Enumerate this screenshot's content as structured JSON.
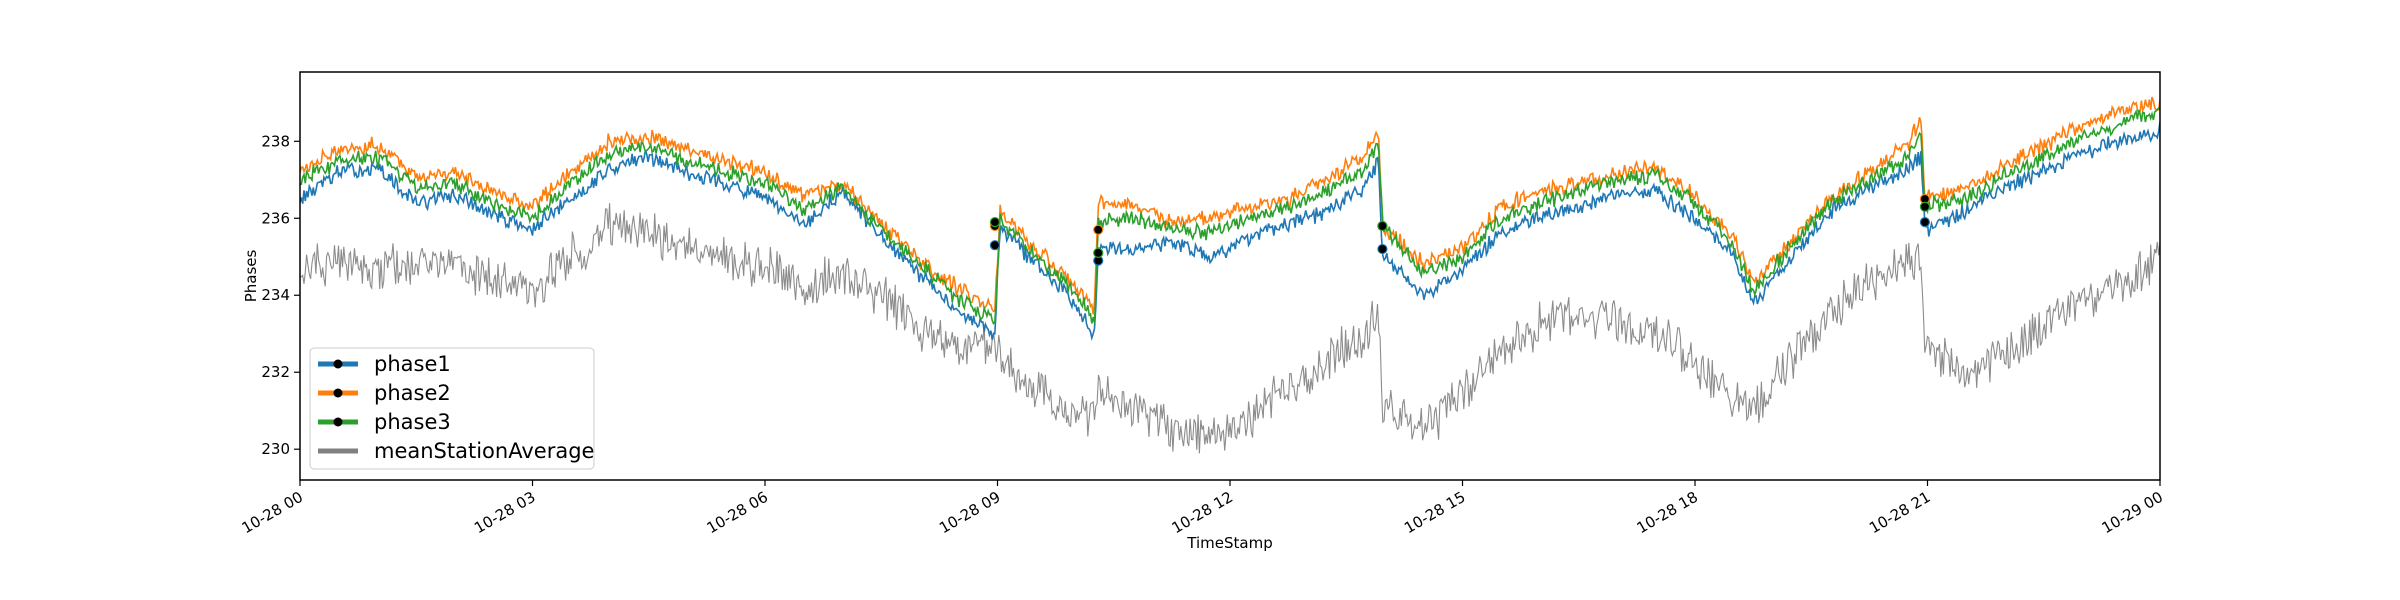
{
  "chart_data": {
    "type": "line",
    "title": "",
    "xlabel": "TimeStamp",
    "ylabel": "Phases",
    "xlim": [
      "2020-10-28T00:00",
      "2020-10-29T00:00"
    ],
    "ylim": [
      229.2,
      239.8
    ],
    "grid": false,
    "legend_position": "lower-left",
    "x_ticks": [
      {
        "t": "2020-10-28T00:00",
        "label": "10-28 00"
      },
      {
        "t": "2020-10-28T03:00",
        "label": "10-28 03"
      },
      {
        "t": "2020-10-28T06:00",
        "label": "10-28 06"
      },
      {
        "t": "2020-10-28T09:00",
        "label": "10-28 09"
      },
      {
        "t": "2020-10-28T12:00",
        "label": "10-28 12"
      },
      {
        "t": "2020-10-28T15:00",
        "label": "10-28 15"
      },
      {
        "t": "2020-10-28T18:00",
        "label": "10-28 18"
      },
      {
        "t": "2020-10-28T21:00",
        "label": "10-28 21"
      },
      {
        "t": "2020-10-29T00:00",
        "label": "10-29 00"
      }
    ],
    "y_ticks": [
      230,
      232,
      234,
      236,
      238
    ],
    "x": [
      "2020-10-28T00:00",
      "2020-10-28T00:30",
      "2020-10-28T01:00",
      "2020-10-28T01:30",
      "2020-10-28T02:00",
      "2020-10-28T02:30",
      "2020-10-28T03:00",
      "2020-10-28T03:30",
      "2020-10-28T04:00",
      "2020-10-28T04:30",
      "2020-10-28T05:00",
      "2020-10-28T05:30",
      "2020-10-28T06:00",
      "2020-10-28T06:30",
      "2020-10-28T07:00",
      "2020-10-28T07:30",
      "2020-10-28T08:00",
      "2020-10-28T08:30",
      "2020-10-28T08:58",
      "2020-10-28T09:02",
      "2020-10-28T09:30",
      "2020-10-28T10:00",
      "2020-10-28T10:15",
      "2020-10-28T10:18",
      "2020-10-28T10:45",
      "2020-10-28T11:15",
      "2020-10-28T11:45",
      "2020-10-28T12:15",
      "2020-10-28T12:45",
      "2020-10-28T13:15",
      "2020-10-28T13:45",
      "2020-10-28T13:55",
      "2020-10-28T13:58",
      "2020-10-28T14:30",
      "2020-10-28T15:00",
      "2020-10-28T15:30",
      "2020-10-28T16:00",
      "2020-10-28T16:30",
      "2020-10-28T17:00",
      "2020-10-28T17:30",
      "2020-10-28T18:00",
      "2020-10-28T18:30",
      "2020-10-28T18:45",
      "2020-10-28T19:15",
      "2020-10-28T19:45",
      "2020-10-28T20:15",
      "2020-10-28T20:45",
      "2020-10-28T20:55",
      "2020-10-28T20:58",
      "2020-10-28T21:30",
      "2020-10-28T22:00",
      "2020-10-28T22:30",
      "2020-10-28T23:00",
      "2020-10-28T23:30",
      "2020-10-29T00:00"
    ],
    "series": [
      {
        "name": "phase1",
        "color": "#1f77b4",
        "marker_x": [
          "2020-10-28T08:58",
          "2020-10-28T10:18",
          "2020-10-28T13:58",
          "2020-10-28T20:58"
        ],
        "marker_y": [
          235.3,
          234.9,
          235.2,
          235.9
        ],
        "values": [
          236.5,
          237.2,
          237.3,
          236.4,
          236.6,
          236.1,
          235.7,
          236.5,
          237.3,
          237.6,
          237.2,
          236.9,
          236.5,
          235.8,
          236.7,
          235.5,
          234.5,
          233.6,
          233.0,
          235.8,
          234.8,
          233.8,
          233.0,
          235.3,
          235.2,
          235.4,
          235.0,
          235.5,
          235.8,
          236.2,
          236.8,
          237.5,
          235.1,
          234.0,
          234.7,
          235.6,
          236.0,
          236.3,
          236.6,
          236.7,
          236.0,
          235.0,
          233.8,
          235.0,
          236.2,
          236.8,
          237.3,
          237.6,
          235.7,
          236.2,
          236.8,
          237.2,
          237.7,
          238.0,
          238.3
        ]
      },
      {
        "name": "phase2",
        "color": "#ff7f0e",
        "marker_x": [
          "2020-10-28T08:58",
          "2020-10-28T10:18",
          "2020-10-28T13:58",
          "2020-10-28T20:58"
        ],
        "marker_y": [
          235.8,
          235.7,
          235.8,
          236.5
        ],
        "values": [
          237.2,
          237.8,
          237.9,
          237.1,
          237.2,
          236.7,
          236.3,
          237.2,
          238.0,
          238.1,
          237.8,
          237.5,
          237.2,
          236.6,
          236.9,
          235.9,
          234.9,
          234.2,
          233.6,
          236.2,
          235.2,
          234.3,
          233.6,
          236.4,
          236.4,
          235.9,
          236.0,
          236.3,
          236.5,
          237.0,
          237.7,
          238.3,
          235.8,
          234.8,
          235.2,
          236.3,
          236.7,
          236.9,
          237.2,
          237.3,
          236.6,
          235.5,
          234.3,
          235.4,
          236.5,
          237.2,
          237.9,
          238.6,
          236.5,
          236.8,
          237.4,
          237.9,
          238.4,
          238.8,
          239.0
        ]
      },
      {
        "name": "phase3",
        "color": "#2ca02c",
        "marker_x": [
          "2020-10-28T08:58",
          "2020-10-28T10:18",
          "2020-10-28T13:58",
          "2020-10-28T20:58"
        ],
        "marker_y": [
          235.9,
          235.1,
          235.8,
          236.3
        ],
        "values": [
          237.0,
          237.5,
          237.6,
          236.8,
          236.9,
          236.4,
          236.0,
          236.9,
          237.7,
          237.9,
          237.5,
          237.2,
          236.9,
          236.2,
          236.8,
          235.7,
          234.8,
          233.9,
          233.3,
          236.0,
          235.0,
          234.1,
          233.3,
          235.9,
          236.0,
          235.7,
          235.6,
          236.0,
          236.3,
          236.7,
          237.3,
          238.0,
          235.8,
          234.6,
          235.0,
          236.0,
          236.4,
          236.7,
          237.0,
          237.1,
          236.4,
          235.3,
          234.1,
          235.3,
          236.4,
          237.0,
          237.6,
          238.2,
          236.3,
          236.5,
          237.1,
          237.6,
          238.1,
          238.5,
          238.7
        ]
      },
      {
        "name": "meanStationAverage",
        "color": "#808080",
        "values": [
          234.6,
          234.8,
          234.7,
          234.9,
          234.8,
          234.4,
          234.2,
          235.0,
          235.8,
          235.7,
          235.3,
          235.0,
          234.7,
          234.3,
          234.6,
          233.9,
          233.2,
          232.6,
          232.8,
          232.4,
          231.5,
          230.8,
          230.8,
          231.6,
          231.0,
          230.5,
          230.2,
          230.8,
          231.6,
          232.3,
          233.0,
          233.6,
          231.0,
          230.5,
          231.5,
          232.5,
          233.2,
          233.6,
          233.4,
          233.0,
          232.3,
          231.4,
          231.0,
          232.4,
          233.5,
          234.3,
          234.8,
          235.0,
          232.6,
          232.0,
          232.4,
          233.2,
          233.8,
          234.2,
          235.0
        ]
      }
    ]
  }
}
